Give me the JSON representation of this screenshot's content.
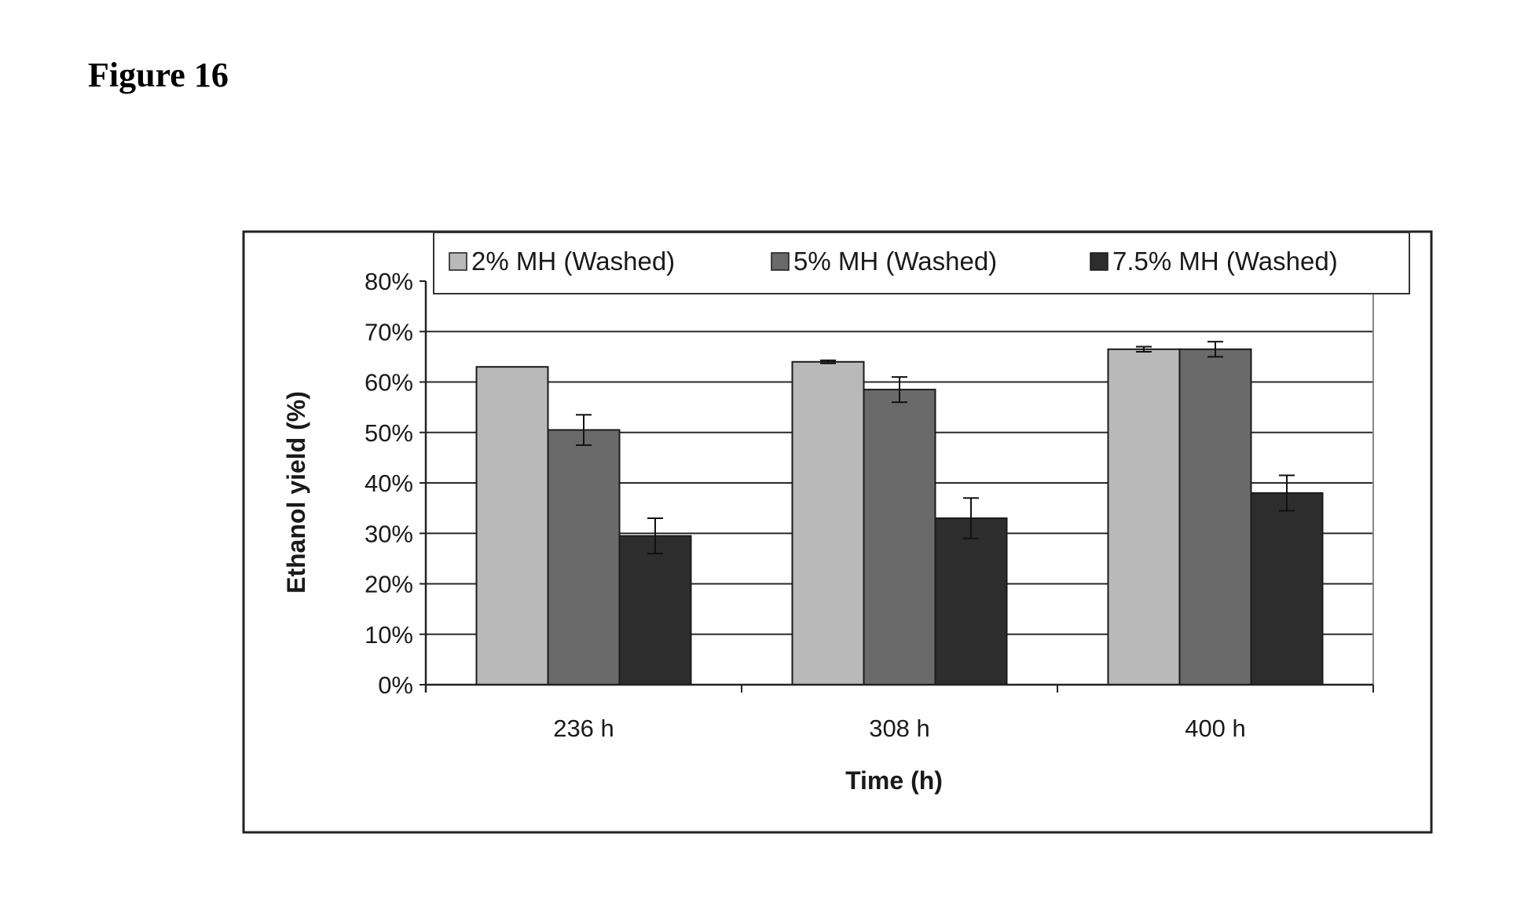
{
  "figure_label": "Figure 16",
  "chart_data": {
    "type": "bar",
    "categories": [
      "236 h",
      "308 h",
      "400 h"
    ],
    "series": [
      {
        "name": "2% MH (Washed)",
        "values": [
          63,
          64,
          66.5
        ],
        "errors": [
          0,
          0.3,
          0.5
        ],
        "color": "#b9b9b9"
      },
      {
        "name": "5% MH (Washed)",
        "values": [
          50.5,
          58.5,
          66.5
        ],
        "errors": [
          3,
          2.5,
          1.5
        ],
        "color": "#6a6a6a"
      },
      {
        "name": "7.5% MH (Washed)",
        "values": [
          29.5,
          33,
          38
        ],
        "errors": [
          3.5,
          4,
          3.5
        ],
        "color": "#2d2d2d"
      }
    ],
    "ylim": [
      0,
      80
    ],
    "yticks": [
      "0%",
      "10%",
      "20%",
      "30%",
      "40%",
      "50%",
      "60%",
      "70%",
      "80%"
    ],
    "ylabel": "Ethanol yield (%)",
    "xlabel": "Time (h)",
    "grid": true,
    "legend_position": "top"
  }
}
